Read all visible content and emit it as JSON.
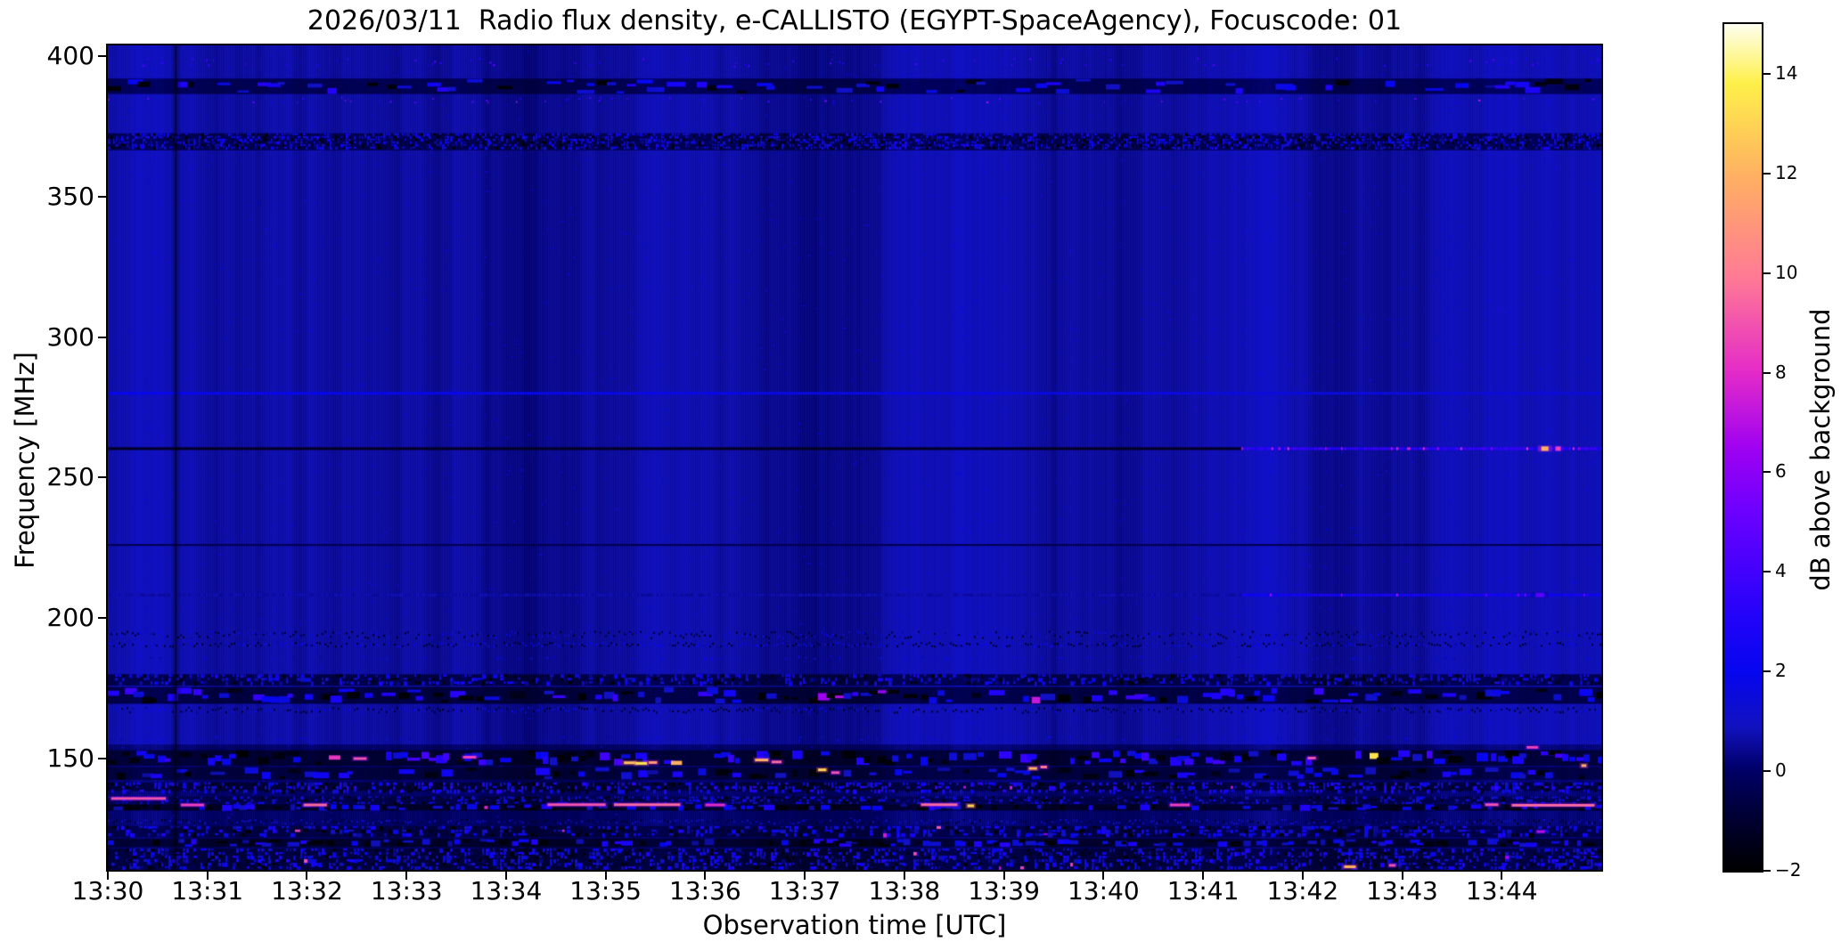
{
  "chart_data": {
    "type": "heatmap",
    "subtype": "radio-spectrogram",
    "title": "2026/03/11  Radio flux density, e-CALLISTO (EGYPT-SpaceAgency), Focuscode: 01",
    "xlabel": "Observation time [UTC]",
    "ylabel": "Frequency [MHz]",
    "colorbar_label": "dB above background",
    "x_ticks": [
      "13:30",
      "13:31",
      "13:32",
      "13:33",
      "13:34",
      "13:35",
      "13:36",
      "13:37",
      "13:38",
      "13:39",
      "13:40",
      "13:41",
      "13:42",
      "13:43",
      "13:44"
    ],
    "x_start": "13:30:00",
    "x_end": "13:45:00",
    "duration_s": 900,
    "y_ticks": [
      400,
      350,
      300,
      250,
      200,
      150
    ],
    "freq_range_mhz": [
      110.4,
      403.8
    ],
    "colorbar_ticks": [
      14,
      12,
      10,
      8,
      6,
      4,
      2,
      0,
      -2
    ],
    "value_range_db": [
      -2,
      15
    ],
    "grid": false,
    "colormap": {
      "name": "gnuplot2-like",
      "stops": [
        [
          0.0,
          "#000000"
        ],
        [
          0.06,
          "#000030"
        ],
        [
          0.12,
          "#000068"
        ],
        [
          0.17,
          "#1212c0"
        ],
        [
          0.235,
          "#0606f0"
        ],
        [
          0.3,
          "#2303fa"
        ],
        [
          0.42,
          "#6a00ff"
        ],
        [
          0.5,
          "#a002f2"
        ],
        [
          0.59,
          "#e52cc8"
        ],
        [
          0.7,
          "#ff7a96"
        ],
        [
          0.82,
          "#ffb062"
        ],
        [
          0.93,
          "#fef04a"
        ],
        [
          1.0,
          "#fffff0"
        ]
      ]
    },
    "features": {
      "base_level_db": 0.8,
      "sparse_speck_count": 2600,
      "zones": [
        {
          "f0": 110.4,
          "f1": 155.0,
          "bg": -0.15
        }
      ],
      "bands": [
        {
          "f0": 396.0,
          "f1": 399.5,
          "type": "dots",
          "density": 0.1,
          "v": [
            2.5,
            4.8
          ]
        },
        {
          "f0": 386.5,
          "f1": 392.0,
          "type": "blobs",
          "bg": -0.2,
          "density": 0.5,
          "v": [
            0.6,
            3.2
          ],
          "cell": [
            14,
            5
          ],
          "dark": 0.28
        },
        {
          "f0": 383.0,
          "f1": 385.5,
          "type": "dots",
          "density": 0.07,
          "v": [
            2.0,
            6.0
          ],
          "hot": 0.1,
          "hotv": [
            6.5,
            8.5
          ]
        },
        {
          "f0": 366.5,
          "f1": 372.5,
          "type": "speckle",
          "bg": -0.3,
          "density": 0.55,
          "v": [
            0.2,
            2.8
          ],
          "cell": [
            3,
            3
          ]
        },
        {
          "f0": 192.5,
          "f1": 195.5,
          "type": "dotrow",
          "density": 0.85,
          "v": [
            0.4,
            2.4
          ]
        },
        {
          "f0": 189.5,
          "f1": 191.5,
          "type": "dotrow",
          "density": 0.9,
          "v": [
            0.4,
            2.6
          ]
        },
        {
          "f0": 185.0,
          "f1": 186.5,
          "type": "dots",
          "density": 0.15,
          "v": [
            0.5,
            2.2
          ]
        },
        {
          "f0": 176.0,
          "f1": 180.0,
          "type": "speckle",
          "bg": -0.4,
          "density": 0.45,
          "v": [
            0.0,
            2.8
          ],
          "cell": [
            4,
            4
          ]
        },
        {
          "f0": 169.5,
          "f1": 175.5,
          "type": "blobs",
          "bg": -0.5,
          "density": 0.55,
          "v": [
            0.8,
            3.8
          ],
          "cell": [
            12,
            6
          ],
          "dark": 0.3,
          "hot": 0.02,
          "hotv": [
            6.0,
            7.5
          ]
        },
        {
          "f0": 166.0,
          "f1": 168.5,
          "type": "dotrow",
          "density": 0.9,
          "v": [
            0.3,
            2.5
          ]
        },
        {
          "f0": 156.0,
          "f1": 158.0,
          "type": "dots",
          "density": 0.12,
          "v": [
            0.5,
            2.5
          ]
        },
        {
          "f0": 147.5,
          "f1": 153.0,
          "type": "blobs",
          "bg": -0.8,
          "density": 0.6,
          "v": [
            1.0,
            4.2
          ],
          "cell": [
            10,
            7
          ],
          "dark": 0.35,
          "hot": 0.035,
          "hotv": [
            7.0,
            13.5
          ]
        },
        {
          "f0": 142.5,
          "f1": 147.0,
          "type": "blobs",
          "bg": -0.6,
          "density": 0.5,
          "v": [
            0.5,
            3.0
          ],
          "cell": [
            12,
            6
          ],
          "dark": 0.35,
          "hot": 0.01,
          "hotv": [
            6.0,
            8.0
          ]
        },
        {
          "f0": 138.5,
          "f1": 141.5,
          "type": "speckle",
          "bg": -0.7,
          "density": 0.5,
          "v": [
            0.5,
            3.5
          ],
          "cell": [
            4,
            4
          ],
          "hot": 0.008,
          "hotv": [
            6.0,
            9.0
          ]
        },
        {
          "f0": 134.0,
          "f1": 136.5,
          "type": "speckle",
          "bg": -0.4,
          "density": 0.4,
          "v": [
            0.0,
            2.5
          ],
          "cell": [
            4,
            3
          ]
        },
        {
          "f0": 131.5,
          "f1": 133.8,
          "type": "blobs",
          "bg": -1.0,
          "density": 0.45,
          "v": [
            0.5,
            3.0
          ],
          "cell": [
            8,
            5
          ],
          "dark": 0.3,
          "hot": 0.012,
          "hotv": [
            7.0,
            10.0
          ]
        },
        {
          "f0": 126.5,
          "f1": 128.5,
          "type": "dotrow",
          "density": 0.7,
          "v": [
            0.2,
            1.8
          ]
        },
        {
          "f0": 122.0,
          "f1": 126.0,
          "type": "speckle",
          "bg": -0.5,
          "density": 0.45,
          "v": [
            0.3,
            3.0
          ],
          "cell": [
            5,
            4
          ],
          "hot": 0.01,
          "hotv": [
            6.0,
            9.0
          ]
        },
        {
          "f0": 118.5,
          "f1": 121.5,
          "type": "blobs",
          "bg": -0.9,
          "density": 0.5,
          "v": [
            0.5,
            3.2
          ],
          "cell": [
            9,
            5
          ],
          "dark": 0.3
        },
        {
          "f0": 110.5,
          "f1": 118.0,
          "type": "speckle",
          "bg": -0.6,
          "density": 0.5,
          "v": [
            0.2,
            3.0
          ],
          "cell": [
            4,
            4
          ],
          "hot": 0.006,
          "hotv": [
            6.0,
            9.0
          ]
        }
      ],
      "lines": [
        {
          "f": 280.0,
          "h": 3,
          "segments": [
            {
              "t0": 0,
              "t1": 900,
              "v": 1.9,
              "slope": -0.5,
              "jitter": 0.5,
              "pink": 0.0
            }
          ]
        },
        {
          "f": 226.0,
          "h": 2,
          "segments": [
            {
              "t0": 0,
              "t1": 900,
              "v": -0.5,
              "slope": 0.0,
              "jitter": 0.3,
              "pink": 0.0
            }
          ]
        },
        {
          "f": 260.3,
          "h": 3,
          "segments": [
            {
              "t0": 0,
              "t1": 683,
              "v": -1.3,
              "slope": 0.0,
              "jitter": 0.25,
              "pink": 0.0
            },
            {
              "t0": 683,
              "t1": 900,
              "v": 3.2,
              "slope": 0.0,
              "jitter": 1.6,
              "pink": 0.08
            }
          ],
          "hotspots": [
            {
              "t": 866,
              "v": 12.0,
              "w": 8
            },
            {
              "t": 874,
              "v": 8.5,
              "w": 6
            }
          ]
        },
        {
          "f": 208.2,
          "h": 3,
          "segments": [
            {
              "t0": 0,
              "t1": 683,
              "v": 0.6,
              "slope": 0.0,
              "jitter": 0.4,
              "pink": 0.0
            },
            {
              "t0": 683,
              "t1": 900,
              "v": 2.4,
              "slope": 0.0,
              "jitter": 0.9,
              "pink": 0.02
            }
          ],
          "hotspots": [
            {
              "t": 863,
              "v": 4.5,
              "w": 10
            }
          ]
        }
      ],
      "streaks": [
        {
          "t0": 2,
          "t1": 35,
          "f": 135.8,
          "v": 9.0
        },
        {
          "t0": 44,
          "t1": 58,
          "f": 133.5,
          "v": 8.5
        },
        {
          "t0": 118,
          "t1": 132,
          "f": 133.5,
          "v": 9.5
        },
        {
          "t0": 148,
          "t1": 156,
          "f": 150.0,
          "v": 9.0
        },
        {
          "t0": 214,
          "t1": 222,
          "f": 150.5,
          "v": 8.5
        },
        {
          "t0": 265,
          "t1": 300,
          "f": 133.6,
          "v": 9.0
        },
        {
          "t0": 305,
          "t1": 345,
          "f": 133.6,
          "v": 9.5
        },
        {
          "t0": 311,
          "t1": 318,
          "f": 148.5,
          "v": 12.5
        },
        {
          "t0": 318,
          "t1": 325,
          "f": 148.3,
          "v": 13.5
        },
        {
          "t0": 326,
          "t1": 331,
          "f": 148.6,
          "v": 11.0
        },
        {
          "t0": 360,
          "t1": 372,
          "f": 133.5,
          "v": 8.0
        },
        {
          "t0": 390,
          "t1": 398,
          "f": 149.5,
          "v": 12.0
        },
        {
          "t0": 400,
          "t1": 406,
          "f": 148.8,
          "v": 9.5
        },
        {
          "t0": 428,
          "t1": 433,
          "f": 146.0,
          "v": 13.0
        },
        {
          "t0": 436,
          "t1": 441,
          "f": 145.0,
          "v": 9.0
        },
        {
          "t0": 490,
          "t1": 512,
          "f": 133.6,
          "v": 9.5
        },
        {
          "t0": 518,
          "t1": 522,
          "f": 133.2,
          "v": 13.0
        },
        {
          "t0": 555,
          "t1": 560,
          "f": 146.5,
          "v": 12.0
        },
        {
          "t0": 562,
          "t1": 566,
          "f": 147.0,
          "v": 10.0
        },
        {
          "t0": 640,
          "t1": 652,
          "f": 133.5,
          "v": 8.5
        },
        {
          "t0": 723,
          "t1": 728,
          "f": 150.2,
          "v": 9.0
        },
        {
          "t0": 745,
          "t1": 752,
          "f": 111.5,
          "v": 12.0
        },
        {
          "t0": 772,
          "t1": 776,
          "f": 112.0,
          "v": 9.0
        },
        {
          "t0": 830,
          "t1": 838,
          "f": 133.6,
          "v": 9.0
        },
        {
          "t0": 846,
          "t1": 896,
          "f": 133.4,
          "v": 9.5
        },
        {
          "t0": 855,
          "t1": 862,
          "f": 154.0,
          "v": 8.5
        },
        {
          "t0": 861,
          "t1": 866,
          "f": 124.0,
          "v": 7.0
        },
        {
          "t0": 888,
          "t1": 891,
          "f": 147.5,
          "v": 12.0
        }
      ],
      "vertical_lines": [
        {
          "t": 41,
          "w": 3,
          "alpha": 0.45
        }
      ]
    }
  }
}
